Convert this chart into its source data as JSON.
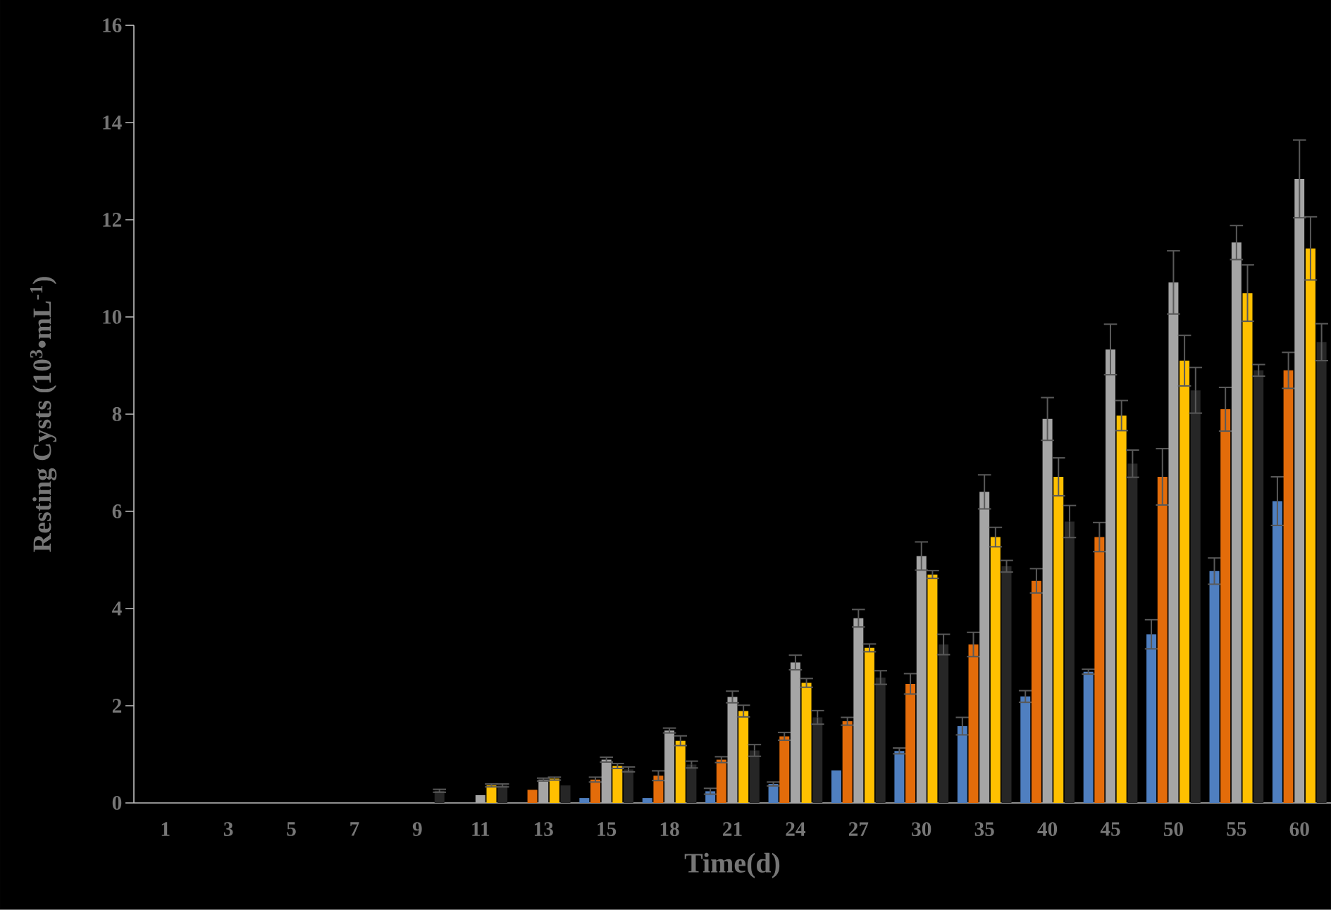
{
  "chart_data": {
    "type": "bar",
    "xlabel": "Time(d)",
    "ylabel": "Resting Cysts  (10$^{3}$•mL$^{-1}$)",
    "categories": [
      "1",
      "3",
      "5",
      "7",
      "9",
      "11",
      "13",
      "15",
      "18",
      "21",
      "24",
      "27",
      "30",
      "35",
      "40",
      "45",
      "50",
      "55",
      "60"
    ],
    "series": [
      {
        "color": "#4f7fc0",
        "values": [
          0,
          0,
          0,
          0,
          0,
          0,
          0,
          0.1,
          0.1,
          0.24,
          0.39,
          0.67,
          1.07,
          1.58,
          2.19,
          2.7,
          3.47,
          4.77,
          6.21
        ],
        "errors": [
          null,
          null,
          null,
          null,
          null,
          null,
          null,
          null,
          null,
          0.06,
          0.04,
          null,
          0.06,
          0.18,
          0.12,
          0.05,
          0.3,
          0.27,
          0.5
        ]
      },
      {
        "color": "#e36c0a",
        "values": [
          0,
          0,
          0,
          0,
          0,
          0,
          0.27,
          0.48,
          0.56,
          0.89,
          1.37,
          1.68,
          2.45,
          3.26,
          4.57,
          5.47,
          6.71,
          8.1,
          8.9
        ],
        "errors": [
          null,
          null,
          null,
          null,
          null,
          null,
          null,
          0.05,
          0.1,
          0.06,
          0.08,
          0.08,
          0.21,
          0.25,
          0.25,
          0.3,
          0.58,
          0.45,
          0.37
        ]
      },
      {
        "color": "#a5a5a5",
        "values": [
          0,
          0,
          0,
          0,
          0,
          0.16,
          0.48,
          0.89,
          1.49,
          2.18,
          2.89,
          3.8,
          5.08,
          6.4,
          7.9,
          9.33,
          10.71,
          11.53,
          12.84
        ],
        "errors": [
          null,
          null,
          null,
          null,
          null,
          null,
          0.03,
          0.05,
          0.05,
          0.12,
          0.15,
          0.18,
          0.29,
          0.35,
          0.44,
          0.52,
          0.65,
          0.35,
          0.8
        ]
      },
      {
        "color": "#ffc000",
        "values": [
          0,
          0,
          0,
          0,
          0,
          0.36,
          0.5,
          0.76,
          1.28,
          1.89,
          2.47,
          3.19,
          4.7,
          5.47,
          6.71,
          7.97,
          9.1,
          10.49,
          11.41
        ],
        "errors": [
          null,
          null,
          null,
          null,
          null,
          0.03,
          0.03,
          0.05,
          0.1,
          0.12,
          0.09,
          0.08,
          0.08,
          0.2,
          0.39,
          0.31,
          0.52,
          0.58,
          0.65
        ]
      },
      {
        "color": "#262626",
        "values": [
          0,
          0,
          0,
          0,
          0.25,
          0.36,
          0.36,
          0.69,
          0.79,
          1.08,
          1.76,
          2.58,
          3.26,
          4.87,
          5.79,
          6.98,
          8.49,
          8.9,
          9.48
        ],
        "errors": [
          null,
          null,
          null,
          null,
          0.03,
          0.03,
          null,
          0.05,
          0.07,
          0.12,
          0.14,
          0.14,
          0.21,
          0.12,
          0.33,
          0.28,
          0.47,
          0.12,
          0.38
        ]
      }
    ],
    "ylim": [
      0,
      16
    ],
    "yticks": [
      0,
      2,
      4,
      6,
      8,
      10,
      12,
      14,
      16
    ],
    "grid": false,
    "legend": false
  }
}
